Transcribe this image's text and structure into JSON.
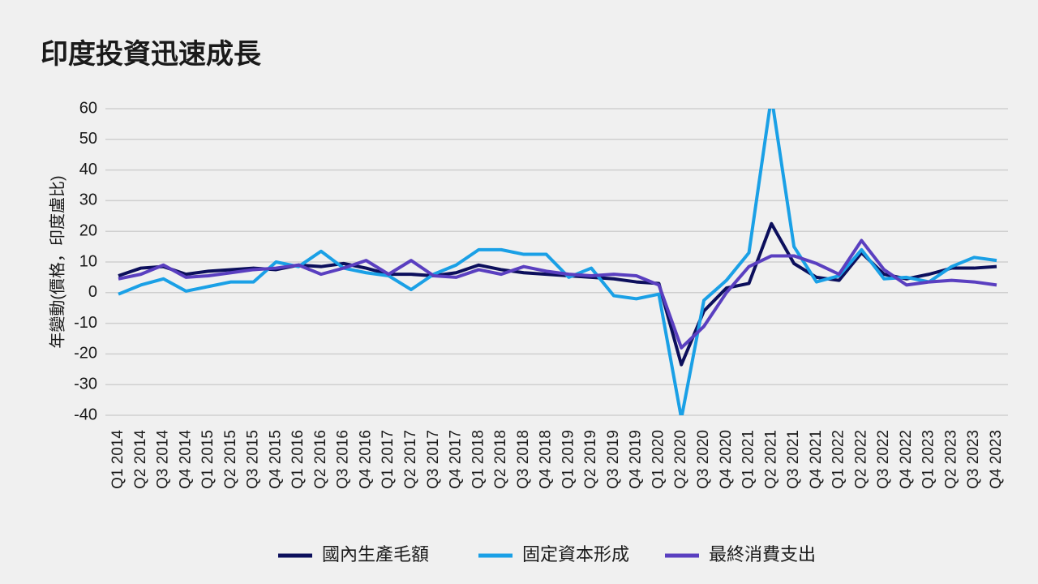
{
  "chart_data": {
    "type": "line",
    "title": "印度投資迅速成長",
    "y_label": "年變動(價格，印度盧比)",
    "categories": [
      "Q1 2014",
      "Q2 2014",
      "Q3 2014",
      "Q4 2014",
      "Q1 2015",
      "Q2 2015",
      "Q3 2015",
      "Q4 2015",
      "Q1 2016",
      "Q2 2016",
      "Q3 2016",
      "Q4 2016",
      "Q1 2017",
      "Q2 2017",
      "Q3 2017",
      "Q4 2017",
      "Q1 2018",
      "Q2 2018",
      "Q3 2018",
      "Q4 2018",
      "Q1 2019",
      "Q2 2019",
      "Q3 2019",
      "Q4 2019",
      "Q1 2020",
      "Q2 2020",
      "Q3 2020",
      "Q4 2020",
      "Q1 2021",
      "Q2 2021",
      "Q3 2021",
      "Q4 2021",
      "Q1 2022",
      "Q2 2022",
      "Q3 2022",
      "Q4 2022",
      "Q1 2023",
      "Q2 2023",
      "Q3 2023",
      "Q4 2023"
    ],
    "series": [
      {
        "name": "國內生產毛額",
        "color": "#0c0f5c",
        "values": [
          5.5,
          8,
          8.5,
          6,
          7,
          7.5,
          8,
          7.5,
          9,
          8.5,
          9.5,
          8,
          6,
          6,
          5.5,
          6.5,
          9,
          7.5,
          6.5,
          6,
          5.5,
          5,
          4.5,
          3.5,
          3,
          -23.5,
          -6,
          1.5,
          3,
          22.5,
          9.5,
          5,
          4,
          13,
          6,
          4.5,
          6,
          8,
          8,
          8.5
        ]
      },
      {
        "name": "固定資本形成",
        "color": "#1aa0e6",
        "values": [
          -0.5,
          2.5,
          4.5,
          0.5,
          2,
          3.5,
          3.5,
          10,
          8.5,
          13.5,
          8,
          6.5,
          5.5,
          1,
          6,
          9,
          14,
          14,
          12.5,
          12.5,
          5,
          8,
          -1,
          -2,
          -0.5,
          -41,
          -2.5,
          4,
          13,
          64,
          15,
          3.5,
          5.5,
          14,
          4.5,
          5,
          3.5,
          8.5,
          11.5,
          10.5
        ]
      },
      {
        "name": "最終消費支出",
        "color": "#5a3fc0",
        "values": [
          4.5,
          6,
          9,
          5,
          5.5,
          6.5,
          7.5,
          8,
          9,
          6,
          8,
          10.5,
          6,
          10.5,
          5.5,
          5,
          7.5,
          6,
          8.5,
          7,
          6,
          5.5,
          6,
          5.5,
          2.5,
          -18,
          -11,
          0,
          8.5,
          12,
          12,
          9.5,
          6,
          17,
          7.5,
          2.5,
          3.5,
          4,
          3.5,
          2.5
        ]
      }
    ],
    "ylim": [
      -40,
      60
    ],
    "yticks": [
      -40,
      -30,
      -20,
      -10,
      0,
      10,
      20,
      30,
      40,
      50,
      60
    ],
    "grid": true
  }
}
